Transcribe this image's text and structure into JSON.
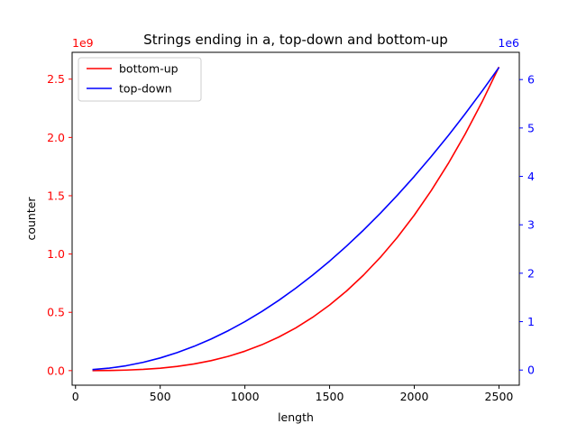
{
  "chart_data": {
    "type": "line",
    "title": "Strings ending in a, top-down and bottom-up",
    "xlabel": "length",
    "ylabel": "counter",
    "xlim": [
      -20,
      2620
    ],
    "x_ticks": [
      0,
      500,
      1000,
      1500,
      2000,
      2500
    ],
    "x_tick_labels": [
      "0",
      "500",
      "1000",
      "1500",
      "2000",
      "2500"
    ],
    "y_left": {
      "lim": [
        -125000000.0,
        2730000000.0
      ],
      "ticks": [
        0,
        500000000.0,
        1000000000.0,
        1500000000.0,
        2000000000.0,
        2500000000.0
      ],
      "tick_labels": [
        "0.0",
        "0.5",
        "1.0",
        "1.5",
        "2.0",
        "2.5"
      ],
      "offset_label": "1e9",
      "color": "#ff0000"
    },
    "y_right": {
      "lim": [
        -312500.0,
        6562500.0
      ],
      "ticks": [
        0,
        1000000.0,
        2000000.0,
        3000000.0,
        4000000.0,
        5000000.0,
        6000000.0
      ],
      "tick_labels": [
        "0",
        "1",
        "2",
        "3",
        "4",
        "5",
        "6"
      ],
      "offset_label": "1e6",
      "color": "#0000ff"
    },
    "legend_position": "upper-left",
    "grid": false,
    "series": [
      {
        "name": "bottom-up",
        "axis": "left",
        "color": "#ff0000",
        "x": [
          100,
          200,
          300,
          400,
          500,
          600,
          700,
          800,
          900,
          1000,
          1100,
          1200,
          1300,
          1400,
          1500,
          1600,
          1700,
          1800,
          1900,
          2000,
          2100,
          2200,
          2300,
          2400,
          2500
        ],
        "values": [
          166700,
          1333400,
          4500100,
          10666800,
          20833500,
          36000200,
          57166900,
          85333600,
          121500300,
          166667000,
          221833700,
          288000400,
          366167100,
          457333800,
          562500500,
          682667200,
          818833900,
          972000600,
          1143167300,
          1333334000,
          1543500700,
          1774667400,
          2027834100,
          2304000800,
          2604167500
        ]
      },
      {
        "name": "top-down",
        "axis": "right",
        "color": "#0000ff",
        "x": [
          100,
          200,
          300,
          400,
          500,
          600,
          700,
          800,
          900,
          1000,
          1100,
          1200,
          1300,
          1400,
          1500,
          1600,
          1700,
          1800,
          1900,
          2000,
          2100,
          2200,
          2300,
          2400,
          2500
        ],
        "values": [
          10000,
          40000,
          90000,
          160000,
          250000,
          360000,
          490000,
          640000,
          810000,
          1000000,
          1210000,
          1440000,
          1690000,
          1960000,
          2250000,
          2560000,
          2890000,
          3240000,
          3610000,
          4000000,
          4410000,
          4840000,
          5290000,
          5760000,
          6250000
        ]
      }
    ]
  }
}
